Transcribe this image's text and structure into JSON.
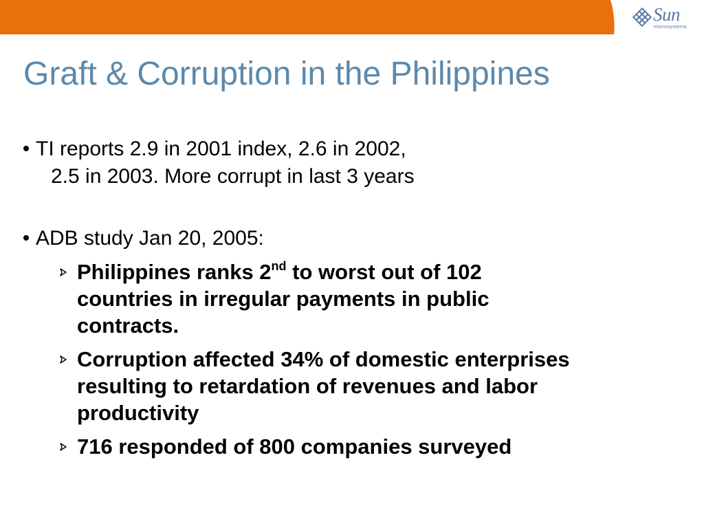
{
  "slide": {
    "title": "Graft & Corruption in the Philippines",
    "logo": {
      "brand": "Sun",
      "sub": "microsystems"
    },
    "colors": {
      "orange_bar": "#e9700a",
      "title": "#5b89ac",
      "logo": "#5878a8"
    },
    "bullets": [
      {
        "line1": "TI reports 2.9 in 2001 index, 2.6 in 2002,",
        "line2": "2.5 in 2003.  More corrupt in last 3 years"
      },
      {
        "line1": "ADB study Jan 20, 2005:",
        "sub_bullets": [
          {
            "lines": [
              "Philippines ranks 2",
              "nd",
              " to worst out of 102",
              "countries in irregular payments in public",
              "contracts."
            ]
          },
          {
            "lines": [
              "Corruption affected 34% of domestic enterprises",
              "resulting to retardation of revenues and labor",
              "productivity"
            ]
          },
          {
            "lines": [
              "716 responded of 800 companies surveyed"
            ]
          }
        ]
      }
    ]
  }
}
